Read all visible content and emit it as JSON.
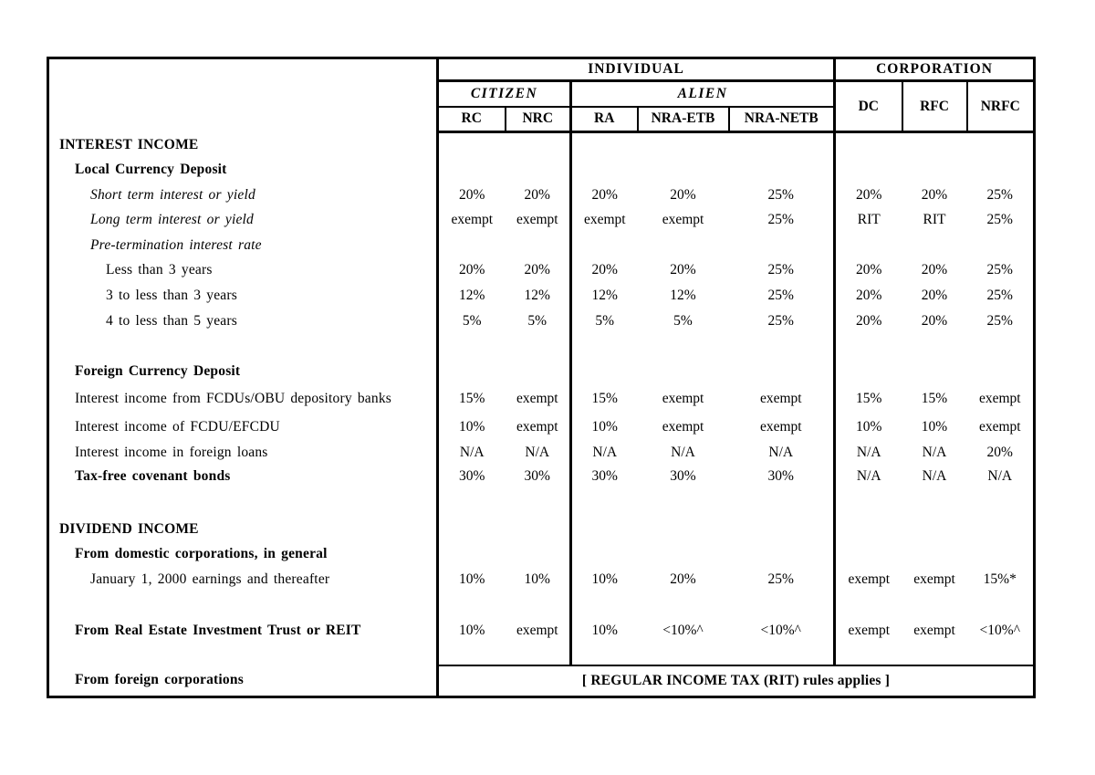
{
  "document": {
    "background_color": "#ffffff",
    "line_color": "#000000"
  },
  "table": {
    "header": {
      "group_individual": "INDIVIDUAL",
      "group_corporation": "CORPORATION",
      "subgroup_citizen": "CITIZEN",
      "subgroup_alien": "ALIEN",
      "columns": [
        "RC",
        "NRC",
        "RA",
        "NRA-ETB",
        "NRA-NETB",
        "DC",
        "RFC",
        "NRFC"
      ]
    },
    "rows": [
      {
        "label": "INTEREST INCOME",
        "style": "b0",
        "values": null
      },
      {
        "label": "Local Currency Deposit",
        "style": "b1",
        "values": null
      },
      {
        "label": "Short term interest or yield",
        "style": "i2",
        "values": [
          "20%",
          "20%",
          "20%",
          "20%",
          "25%",
          "20%",
          "20%",
          "25%"
        ]
      },
      {
        "label": "Long term interest or yield",
        "style": "i2",
        "values": [
          "exempt",
          "exempt",
          "exempt",
          "exempt",
          "25%",
          "RIT",
          "RIT",
          "25%"
        ]
      },
      {
        "label": "Pre-termination interest rate",
        "style": "i2",
        "values": null
      },
      {
        "label": "Less than 3 years",
        "style": "r3",
        "values": [
          "20%",
          "20%",
          "20%",
          "20%",
          "25%",
          "20%",
          "20%",
          "25%"
        ]
      },
      {
        "label": "3 to less than 3 years",
        "style": "r3",
        "values": [
          "12%",
          "12%",
          "12%",
          "12%",
          "25%",
          "20%",
          "20%",
          "25%"
        ]
      },
      {
        "label": "4 to less than 5 years",
        "style": "r3",
        "values": [
          "5%",
          "5%",
          "5%",
          "5%",
          "25%",
          "20%",
          "20%",
          "25%"
        ]
      },
      {
        "label": "",
        "style": "blank",
        "values": null
      },
      {
        "label": "Foreign Currency Deposit",
        "style": "b1",
        "values": null
      },
      {
        "label": "Interest income from FCDUs/OBU depository banks",
        "style": "r1",
        "values": [
          "15%",
          "exempt",
          "15%",
          "exempt",
          "exempt",
          "15%",
          "15%",
          "exempt"
        ]
      },
      {
        "label": "Interest income of FCDU/EFCDU",
        "style": "r1",
        "values": [
          "10%",
          "exempt",
          "10%",
          "exempt",
          "exempt",
          "10%",
          "10%",
          "exempt"
        ]
      },
      {
        "label": "Interest income in foreign loans",
        "style": "r1",
        "values": [
          "N/A",
          "N/A",
          "N/A",
          "N/A",
          "N/A",
          "N/A",
          "N/A",
          "20%"
        ]
      },
      {
        "label": "Tax-free covenant bonds",
        "style": "b1",
        "values": [
          "30%",
          "30%",
          "30%",
          "30%",
          "30%",
          "N/A",
          "N/A",
          "N/A"
        ]
      },
      {
        "label": "",
        "style": "blank",
        "values": null
      },
      {
        "label": "DIVIDEND INCOME",
        "style": "b0",
        "values": null
      },
      {
        "label": "From domestic corporations, in general",
        "style": "b1",
        "values": null
      },
      {
        "label": "January 1, 2000 earnings and thereafter",
        "style": "r2",
        "values": [
          "10%",
          "10%",
          "10%",
          "20%",
          "25%",
          "exempt",
          "exempt",
          "15%*"
        ]
      },
      {
        "label": "",
        "style": "blank",
        "values": null
      },
      {
        "label": "From Real Estate Investment Trust or REIT",
        "style": "b1",
        "values": [
          "10%",
          "exempt",
          "10%",
          "<10%^",
          "<10%^",
          "exempt",
          "exempt",
          "<10%^"
        ]
      },
      {
        "label": "",
        "style": "blank",
        "values": null
      }
    ],
    "footer": {
      "label": "From foreign corporations",
      "note": "[ REGULAR INCOME TAX (RIT) rules applies ]"
    }
  }
}
